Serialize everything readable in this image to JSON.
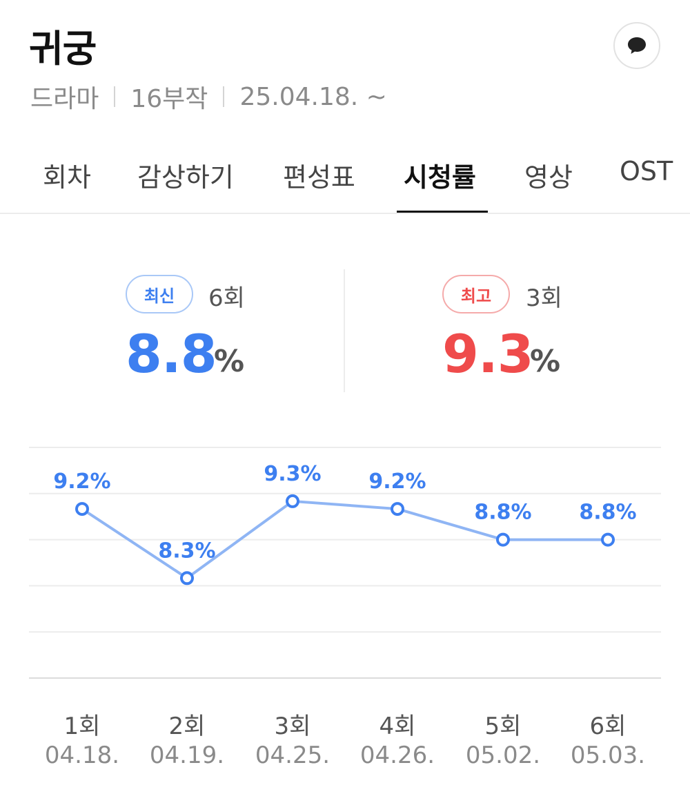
{
  "header": {
    "title": "귀궁",
    "genre": "드라마",
    "episodes": "16부작",
    "air_date": "25.04.18. ~",
    "comment_icon": "speech-bubble-icon"
  },
  "tabs": [
    {
      "label": "회차",
      "active": false
    },
    {
      "label": "감상하기",
      "active": false
    },
    {
      "label": "편성표",
      "active": false
    },
    {
      "label": "시청률",
      "active": true
    },
    {
      "label": "영상",
      "active": false
    },
    {
      "label": "OST",
      "active": false
    }
  ],
  "stats": {
    "latest": {
      "badge": "최신",
      "episode": "6회",
      "value": "8.8",
      "unit": "%"
    },
    "highest": {
      "badge": "최고",
      "episode": "3회",
      "value": "9.3",
      "unit": "%"
    }
  },
  "colors": {
    "accent_blue": "#3d7ff0",
    "line_blue": "#8fb5f4",
    "accent_red": "#ef4b4b"
  },
  "chart_data": {
    "type": "line",
    "categories": [
      "1회",
      "2회",
      "3회",
      "4회",
      "5회",
      "6회"
    ],
    "dates": [
      "04.18.",
      "04.19.",
      "04.25.",
      "04.26.",
      "05.02.",
      "05.03."
    ],
    "values": [
      9.2,
      8.3,
      9.3,
      9.2,
      8.8,
      8.8
    ],
    "data_labels": [
      "9.2%",
      "8.3%",
      "9.3%",
      "9.2%",
      "8.8%",
      "8.8%"
    ],
    "ylim": [
      7.0,
      10.0
    ],
    "grid": true
  }
}
